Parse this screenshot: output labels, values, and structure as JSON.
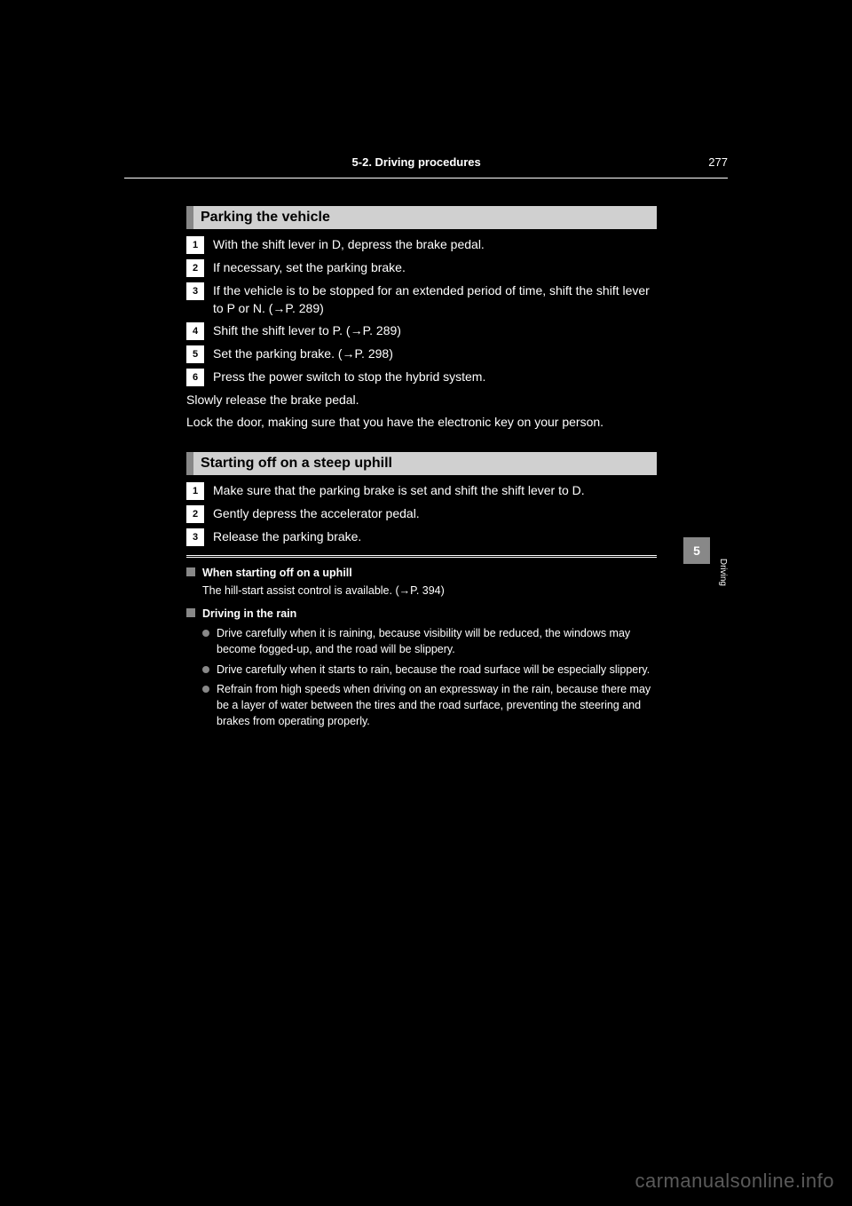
{
  "header": {
    "page_number": "277",
    "section_title": "5-2. Driving procedures"
  },
  "side": {
    "chapter_number": "5",
    "chapter_label": "Driving"
  },
  "sections": [
    {
      "title": "Parking the vehicle",
      "steps": [
        {
          "n": "1",
          "text": "With the shift lever in D, depress the brake pedal."
        },
        {
          "n": "2",
          "text": "If necessary, set the parking brake."
        },
        {
          "n": "3",
          "text": "If the vehicle is to be stopped for an extended period of time, shift the shift lever to P or N. (→P. 289)"
        },
        {
          "n": "4",
          "text": "Shift the shift lever to P. (→P. 289)"
        },
        {
          "n": "5",
          "text": "Set the parking brake. (→P. 298)"
        },
        {
          "n": "6",
          "text": "Press the power switch to stop the hybrid system."
        }
      ],
      "tail_notes": [
        "Slowly release the brake pedal.",
        "Lock the door, making sure that you have the electronic key on your person."
      ]
    },
    {
      "title": "Starting off on a steep uphill",
      "steps": [
        {
          "n": "1",
          "text": "Make sure that the parking brake is set and shift the shift lever to D."
        },
        {
          "n": "2",
          "text": "Gently depress the accelerator pedal."
        },
        {
          "n": "3",
          "text": "Release the parking brake."
        }
      ]
    }
  ],
  "hints": [
    {
      "heading": "When starting off on a uphill",
      "body": "The hill-start assist control is available. (→P. 394)"
    },
    {
      "heading": "Driving in the rain",
      "bullets": [
        "Drive carefully when it is raining, because visibility will be reduced, the windows may become fogged-up, and the road will be slippery.",
        "Drive carefully when it starts to rain, because the road surface will be especially slippery.",
        "Refrain from high speeds when driving on an expressway in the rain, because there may be a layer of water between the tires and the road surface, preventing the steering and brakes from operating properly."
      ]
    }
  ],
  "watermark": "carmanualsonline.info"
}
